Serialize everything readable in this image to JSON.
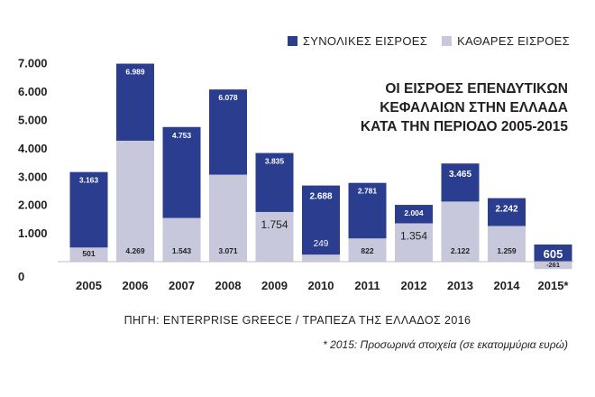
{
  "legend": {
    "total_label": "ΣΥΝΟΛΙΚΕΣ ΕΙΣΡΟΕΣ",
    "net_label": "ΚΑΘΑΡΕΣ ΕΙΣΡΟΕΣ"
  },
  "title_lines": [
    "ΟΙ ΕΙΣΡΟΕΣ ΕΠΕΝΔΥΤΙΚΩΝ",
    "ΚΕΦΑΛΑΙΩΝ ΣΤΗΝ ΕΛΛΑΔΑ",
    "ΚΑΤΑ ΤΗΝ ΠΕΡΙΟΔΟ 2005-2015"
  ],
  "source": "ΠΗΓΗ: ENTERPRISE GREECE / ΤΡΑΠΕΖΑ ΤΗΣ ΕΛΛΑΔΟΣ 2016",
  "footnote": "* 2015: Προσωρινά στοιχεία (σε εκατομμύρια ευρώ)",
  "colors": {
    "total": "#2b3d8f",
    "net": "#c8c8dc",
    "axis": "#bfbfbf"
  },
  "chart_data": {
    "type": "bar",
    "categories": [
      "2005",
      "2006",
      "2007",
      "2008",
      "2009",
      "2010",
      "2011",
      "2012",
      "2013",
      "2014",
      "2015*"
    ],
    "series": [
      {
        "name": "ΣΥΝΟΛΙΚΕΣ ΕΙΣΡΟΕΣ",
        "values": [
          3163,
          6989,
          4753,
          6078,
          3835,
          2688,
          2781,
          2004,
          3465,
          2242,
          605
        ],
        "labels": [
          "3.163",
          "6.989",
          "4.753",
          "6.078",
          "3.835",
          "2.688",
          "2.781",
          "2.004",
          "3.465",
          "2.242",
          "605"
        ]
      },
      {
        "name": "ΚΑΘΑΡΕΣ ΕΙΣΡΟΕΣ",
        "values": [
          501,
          4269,
          1543,
          3071,
          1754,
          249,
          822,
          1354,
          2122,
          1259,
          -261
        ],
        "labels": [
          "501",
          "4.269",
          "1.543",
          "3.071",
          "1.754",
          "249",
          "822",
          "1.354",
          "2.122",
          "1.259",
          "-261"
        ]
      }
    ],
    "y_ticks": [
      0,
      1000,
      2000,
      3000,
      4000,
      5000,
      6000,
      7000
    ],
    "y_tick_labels": [
      "0",
      "1.000",
      "2.000",
      "3.000",
      "4.000",
      "5.000",
      "6.000",
      "7.000"
    ],
    "ylim": [
      -261,
      7000
    ],
    "grid": false,
    "legend_position": "top-right"
  }
}
